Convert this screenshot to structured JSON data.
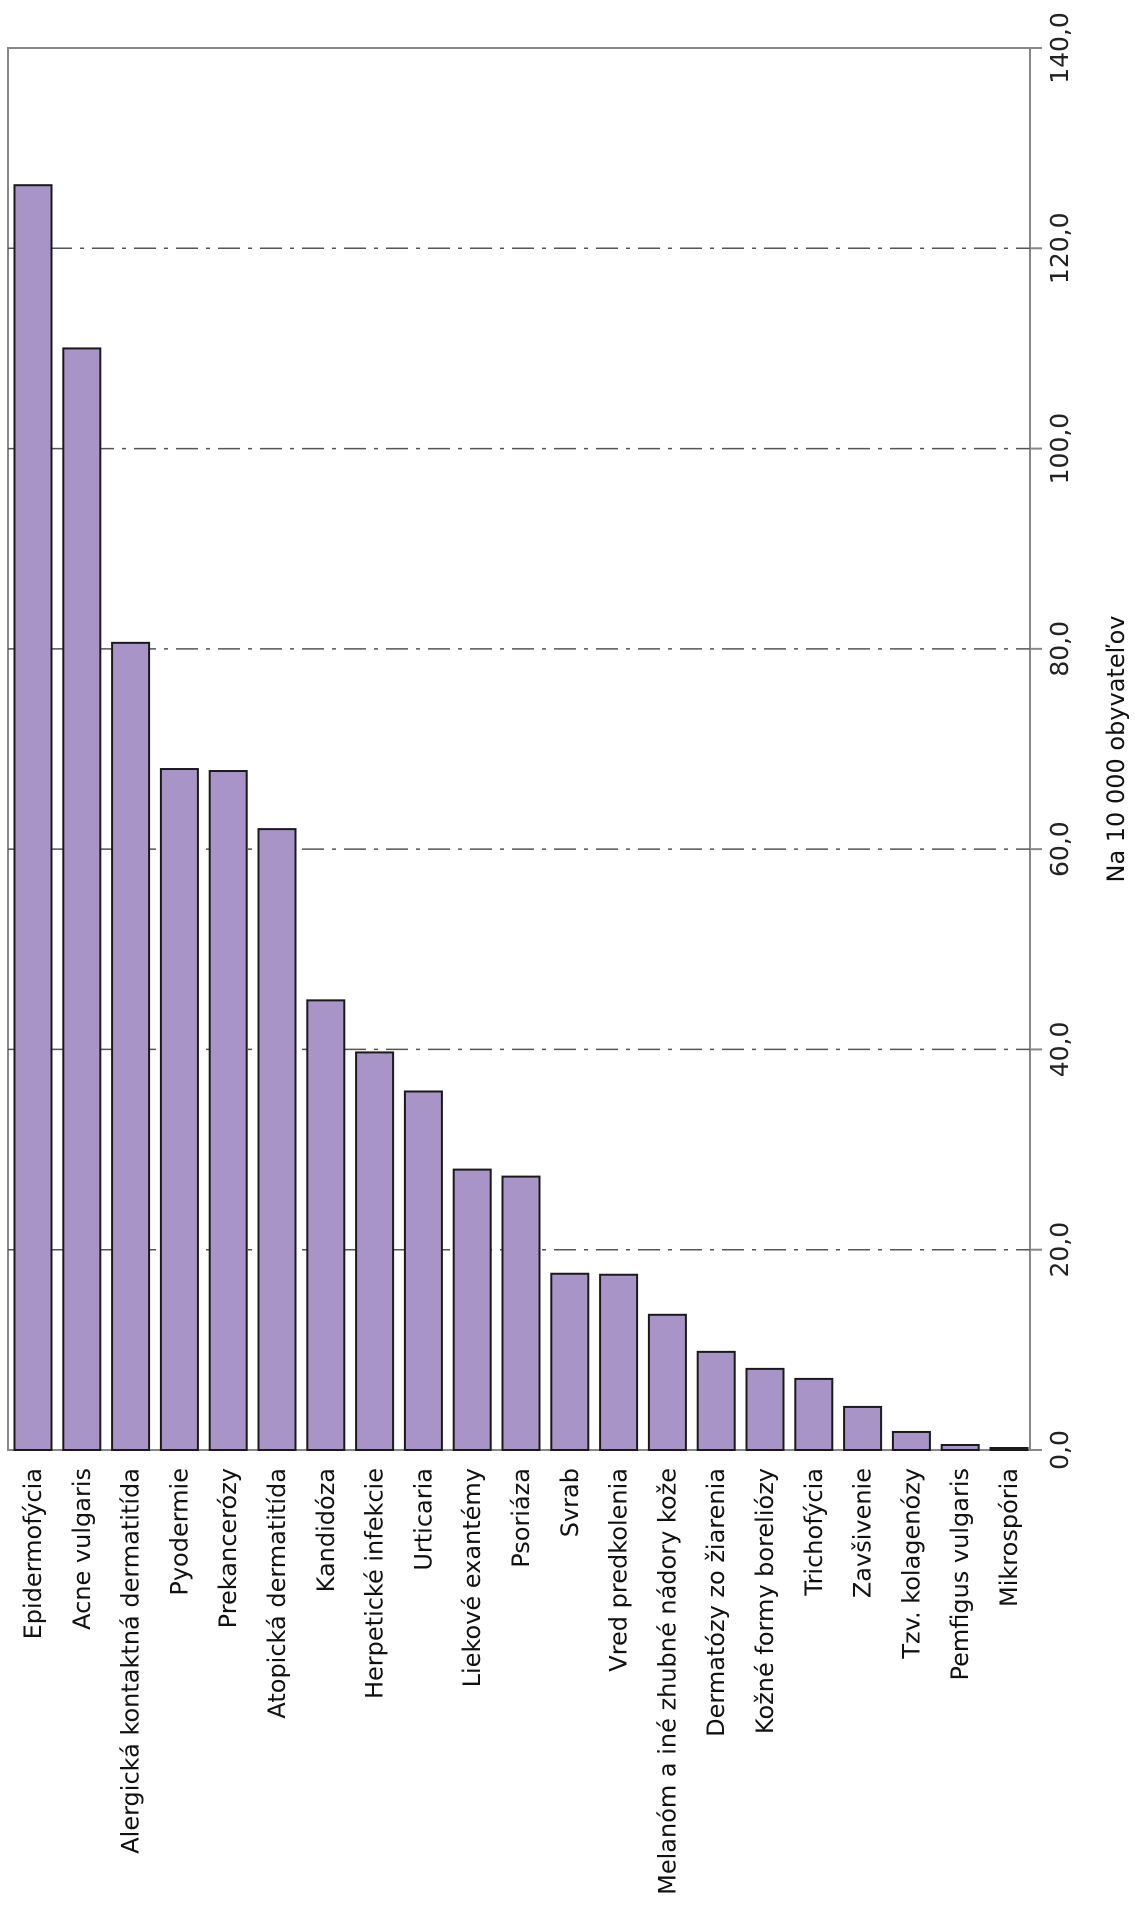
{
  "chart_data": {
    "type": "bar",
    "orientation": "rotated-90",
    "categories": [
      "Epidermofýcia",
      "Acne vulgaris",
      "Alergická kontaktná dermatitída",
      "Pyodermie",
      "Prekancerózy",
      "Atopická dermatitída",
      "Kandidóza",
      "Herpetické infekcie",
      "Urticaria",
      "Liekové exantémy",
      "Psoriáza",
      "Svrab",
      "Vred predkolenia",
      "Melanóm a iné zhubné nádory kože",
      "Dermatózy zo žiarenia",
      "Kožné formy boreliózy",
      "Trichofýcia",
      "Zavšivenie",
      "Tzv. kolagenózy",
      "Pemfigus vulgaris",
      "Mikrospória"
    ],
    "values": [
      126.3,
      110.0,
      80.6,
      68.0,
      67.8,
      62.0,
      44.9,
      39.7,
      35.8,
      28.0,
      27.3,
      17.6,
      17.5,
      13.5,
      9.8,
      8.1,
      7.1,
      4.3,
      1.8,
      0.5,
      0.2
    ],
    "value_ticks": [
      "0,0",
      "20,0",
      "40,0",
      "60,0",
      "80,0",
      "100,0",
      "120,0",
      "140,0"
    ],
    "value_axis_label": "Na 10 000 obyvateľov",
    "ylim": [
      0,
      140
    ],
    "grid": "dash-dot",
    "colors": {
      "bar_fill": "#a994c8",
      "bar_stroke": "#1a1a1a",
      "grid": "#555555",
      "axis": "#888888"
    }
  }
}
